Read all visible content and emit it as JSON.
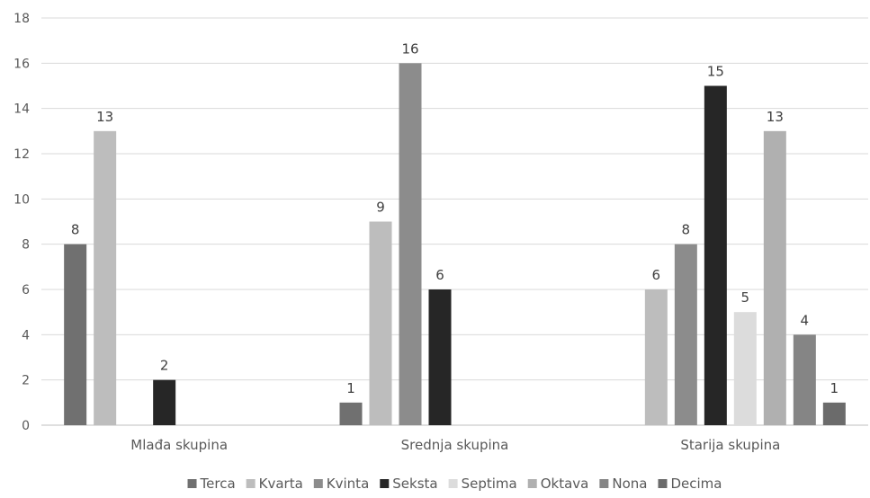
{
  "chart_data": {
    "type": "bar",
    "categories": [
      "Mlađa skupina",
      "Srednja skupina",
      "Starija skupina"
    ],
    "series": [
      {
        "name": "Terca",
        "color": "#707070",
        "values": [
          8,
          1,
          null
        ]
      },
      {
        "name": "Kvarta",
        "color": "#bdbdbd",
        "values": [
          13,
          9,
          6
        ]
      },
      {
        "name": "Kvinta",
        "color": "#8c8c8c",
        "values": [
          null,
          16,
          8
        ]
      },
      {
        "name": "Seksta",
        "color": "#262626",
        "values": [
          2,
          6,
          15
        ]
      },
      {
        "name": "Septima",
        "color": "#dcdcdc",
        "values": [
          null,
          null,
          5
        ]
      },
      {
        "name": "Oktava",
        "color": "#b0b0b0",
        "values": [
          null,
          null,
          13
        ]
      },
      {
        "name": "Nona",
        "color": "#858585",
        "values": [
          null,
          null,
          4
        ]
      },
      {
        "name": "Decima",
        "color": "#6b6b6b",
        "values": [
          null,
          null,
          1
        ]
      }
    ],
    "ylim": [
      0,
      18
    ],
    "yticks": [
      0,
      2,
      4,
      6,
      8,
      10,
      12,
      14,
      16,
      18
    ],
    "grid": true,
    "legend": "bottom",
    "data_labels": true
  }
}
